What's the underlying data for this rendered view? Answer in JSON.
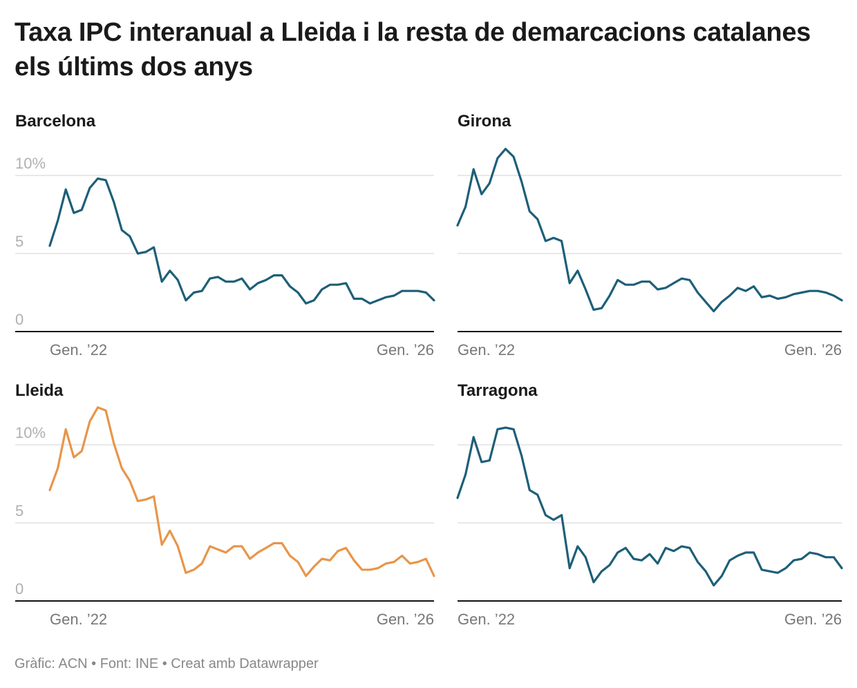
{
  "title": "Taxa IPC interanual a Lleida i la resta de demarcacions catalanes els últims dos anys",
  "source": "Gràfic: ACN • Font: INE • Creat amb Datawrapper",
  "chart_data": {
    "type": "line",
    "layout": "small multiples 2x2",
    "x_range": [
      "Gen. 2022",
      "Gen. 2026"
    ],
    "x_frequency": "monthly",
    "x_ticks": [
      "Gen. ’22",
      "Gen. ’26"
    ],
    "y_ticks": [
      {
        "value": 0,
        "label": "0"
      },
      {
        "value": 5,
        "label": "5"
      },
      {
        "value": 10,
        "label": "10%"
      }
    ],
    "grid": true,
    "colors": {
      "default": "#1d5f78",
      "highlight": "#e8954a",
      "grid": "#e0e0e0",
      "baseline": "#111111"
    },
    "panels": [
      {
        "name": "Barcelona",
        "highlight": false,
        "values": [
          5.5,
          7.1,
          9.1,
          7.6,
          7.8,
          9.2,
          9.8,
          9.7,
          8.3,
          6.5,
          6.1,
          5.0,
          5.1,
          5.4,
          3.2,
          3.9,
          3.3,
          2.0,
          2.5,
          2.6,
          3.4,
          3.5,
          3.2,
          3.2,
          3.4,
          2.7,
          3.1,
          3.3,
          3.6,
          3.6,
          2.9,
          2.5,
          1.8,
          2.0,
          2.7,
          3.0,
          3.0,
          3.1,
          2.1,
          2.1,
          1.8,
          2.0,
          2.2,
          2.3,
          2.6,
          2.6,
          2.6,
          2.5,
          2.0
        ]
      },
      {
        "name": "Girona",
        "highlight": false,
        "values": [
          6.8,
          8.0,
          10.4,
          8.8,
          9.5,
          11.1,
          11.7,
          11.2,
          9.6,
          7.7,
          7.2,
          5.8,
          6.0,
          5.8,
          3.1,
          3.9,
          2.7,
          1.4,
          1.5,
          2.3,
          3.3,
          3.0,
          3.0,
          3.2,
          3.2,
          2.7,
          2.8,
          3.1,
          3.4,
          3.3,
          2.5,
          1.9,
          1.3,
          1.9,
          2.3,
          2.8,
          2.6,
          2.9,
          2.2,
          2.3,
          2.1,
          2.2,
          2.4,
          2.5,
          2.6,
          2.6,
          2.5,
          2.3,
          2.0
        ]
      },
      {
        "name": "Lleida",
        "highlight": true,
        "values": [
          7.1,
          8.5,
          11.0,
          9.2,
          9.6,
          11.5,
          12.4,
          12.2,
          10.1,
          8.5,
          7.7,
          6.4,
          6.5,
          6.7,
          3.6,
          4.5,
          3.5,
          1.8,
          2.0,
          2.4,
          3.5,
          3.3,
          3.1,
          3.5,
          3.5,
          2.7,
          3.1,
          3.4,
          3.7,
          3.7,
          2.9,
          2.5,
          1.6,
          2.2,
          2.7,
          2.6,
          3.2,
          3.4,
          2.6,
          2.0,
          2.0,
          2.1,
          2.4,
          2.5,
          2.9,
          2.4,
          2.5,
          2.7,
          1.6
        ]
      },
      {
        "name": "Tarragona",
        "highlight": false,
        "values": [
          6.6,
          8.1,
          10.5,
          8.9,
          9.0,
          11.0,
          11.1,
          11.0,
          9.3,
          7.1,
          6.8,
          5.5,
          5.2,
          5.5,
          2.1,
          3.5,
          2.8,
          1.2,
          1.9,
          2.3,
          3.1,
          3.4,
          2.7,
          2.6,
          3.0,
          2.4,
          3.4,
          3.2,
          3.5,
          3.4,
          2.5,
          1.9,
          1.0,
          1.6,
          2.6,
          2.9,
          3.1,
          3.1,
          2.0,
          1.9,
          1.8,
          2.1,
          2.6,
          2.7,
          3.1,
          3.0,
          2.8,
          2.8,
          2.1
        ]
      }
    ]
  }
}
